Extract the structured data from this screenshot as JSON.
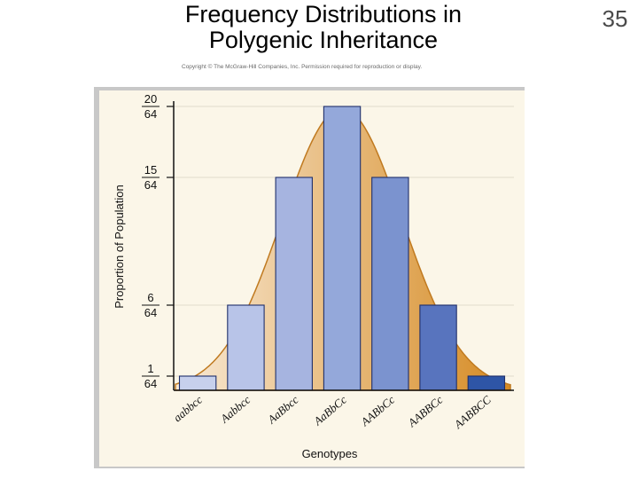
{
  "slide": {
    "title_line1": "Frequency Distributions in",
    "title_line2": "Polygenic Inheritance",
    "number": "35",
    "copyright": "Copyright © The McGraw-Hill Companies, Inc. Permission required for reproduction or display."
  },
  "chart_data": {
    "type": "bar",
    "title": "",
    "xlabel": "Genotypes",
    "ylabel": "Proportion of Population",
    "ylim": [
      0,
      20
    ],
    "categories": [
      "aabbcc",
      "Aabbcc",
      "AaBbcc",
      "AaBbCc",
      "AABbCc",
      "AABBCc",
      "AABBCC"
    ],
    "values": [
      1,
      6,
      15,
      20,
      15,
      6,
      1
    ],
    "value_units": "sixty-fourths of population",
    "y_ticks": [
      {
        "value": 1,
        "numerator": "1",
        "denominator": "64"
      },
      {
        "value": 6,
        "numerator": "6",
        "denominator": "64"
      },
      {
        "value": 15,
        "numerator": "15",
        "denominator": "64"
      },
      {
        "value": 20,
        "numerator": "20",
        "denominator": "64"
      }
    ],
    "bar_colors": [
      "#c7d0ec",
      "#b8c4e8",
      "#a6b4e0",
      "#94a8da",
      "#7b93cf",
      "#5874be",
      "#2e55a6"
    ],
    "curve": "normal distribution overlay, gradient fill",
    "curve_colors": {
      "fill_left": "#f9ead6",
      "fill_right": "#d58a22",
      "stroke": "#c07a20"
    },
    "grid": true,
    "legend": "none"
  }
}
